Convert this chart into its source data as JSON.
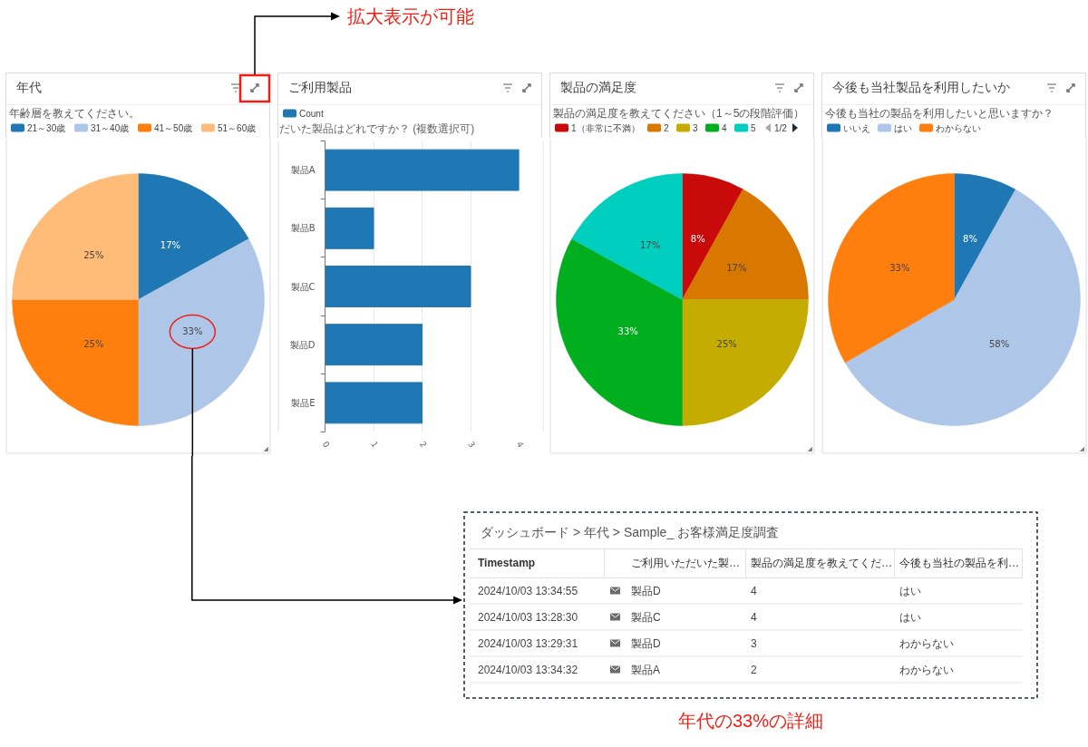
{
  "chart_data": [
    {
      "type": "pie",
      "title": "年代",
      "subtitle": "年齢層を教えてください。",
      "categories": [
        "21～30歳",
        "31～40歳",
        "41～50歳",
        "51～60歳"
      ],
      "values": [
        17,
        33,
        25,
        25
      ],
      "colors": [
        "#1f77b4",
        "#aec7e8",
        "#ff7f0e",
        "#ffbb78"
      ],
      "value_labels": [
        "17%",
        "33%",
        "25%",
        "25%"
      ],
      "legend": "top left",
      "annotations": [
        "拡大表示が可能",
        "年代の33%の詳細"
      ]
    },
    {
      "type": "bar",
      "orientation": "horizontal",
      "title": "ご利用製品",
      "subtitle": "だいた製品はどれですか？ (複数選択可)",
      "categories": [
        "製品A",
        "製品B",
        "製品C",
        "製品D",
        "製品E"
      ],
      "series": [
        {
          "name": "Count",
          "color": "#1f77b4",
          "values": [
            4,
            1,
            3,
            2,
            2
          ]
        }
      ],
      "xlim": [
        0,
        4
      ],
      "xticks": [
        0,
        1,
        2,
        3,
        4
      ],
      "grid": "x",
      "legend": "top left"
    },
    {
      "type": "pie",
      "title": "製品の満足度",
      "subtitle": "製品の満足度を教えてください（1～5の段階評価）",
      "categories": [
        "1（非常に不満）",
        "2",
        "3",
        "4",
        "5"
      ],
      "values": [
        8,
        17,
        25,
        33,
        17
      ],
      "colors": [
        "#c80a0a",
        "#d97800",
        "#c4ac00",
        "#00ae1e",
        "#00cfbf"
      ],
      "value_labels": [
        "8%",
        "17%",
        "25%",
        "33%",
        "17%"
      ],
      "legend": "top left",
      "annotations": [
        "1/2"
      ]
    },
    {
      "type": "pie",
      "title": "今後も当社製品を利用したいか",
      "subtitle": "今後も当社の製品を利用したいと思いますか？",
      "categories": [
        "いいえ",
        "はい",
        "わからない"
      ],
      "values": [
        8,
        58,
        33
      ],
      "colors": [
        "#1f77b4",
        "#aec7e8",
        "#ff7f0e"
      ],
      "value_labels": [
        "8%",
        "58%",
        "33%"
      ],
      "legend": "top left"
    },
    {
      "type": "other",
      "title": "ダッシュボード > 年代 > Sample_ お客様満足度調査",
      "categories": [
        "Timestamp",
        "ご利用いただいた製…",
        "製品の満足度を教えてくだ…",
        "今後も当社の製品を利…"
      ],
      "annotations": [
        "2024/10/03 13:34:55",
        "製品D",
        "4",
        "はい",
        "2024/10/03 13:28:30",
        "製品C",
        "4",
        "はい",
        "2024/10/03 13:29:31",
        "製品D",
        "3",
        "わからない",
        "2024/10/03 13:34:32",
        "製品A",
        "2",
        "わからない"
      ]
    }
  ]
}
